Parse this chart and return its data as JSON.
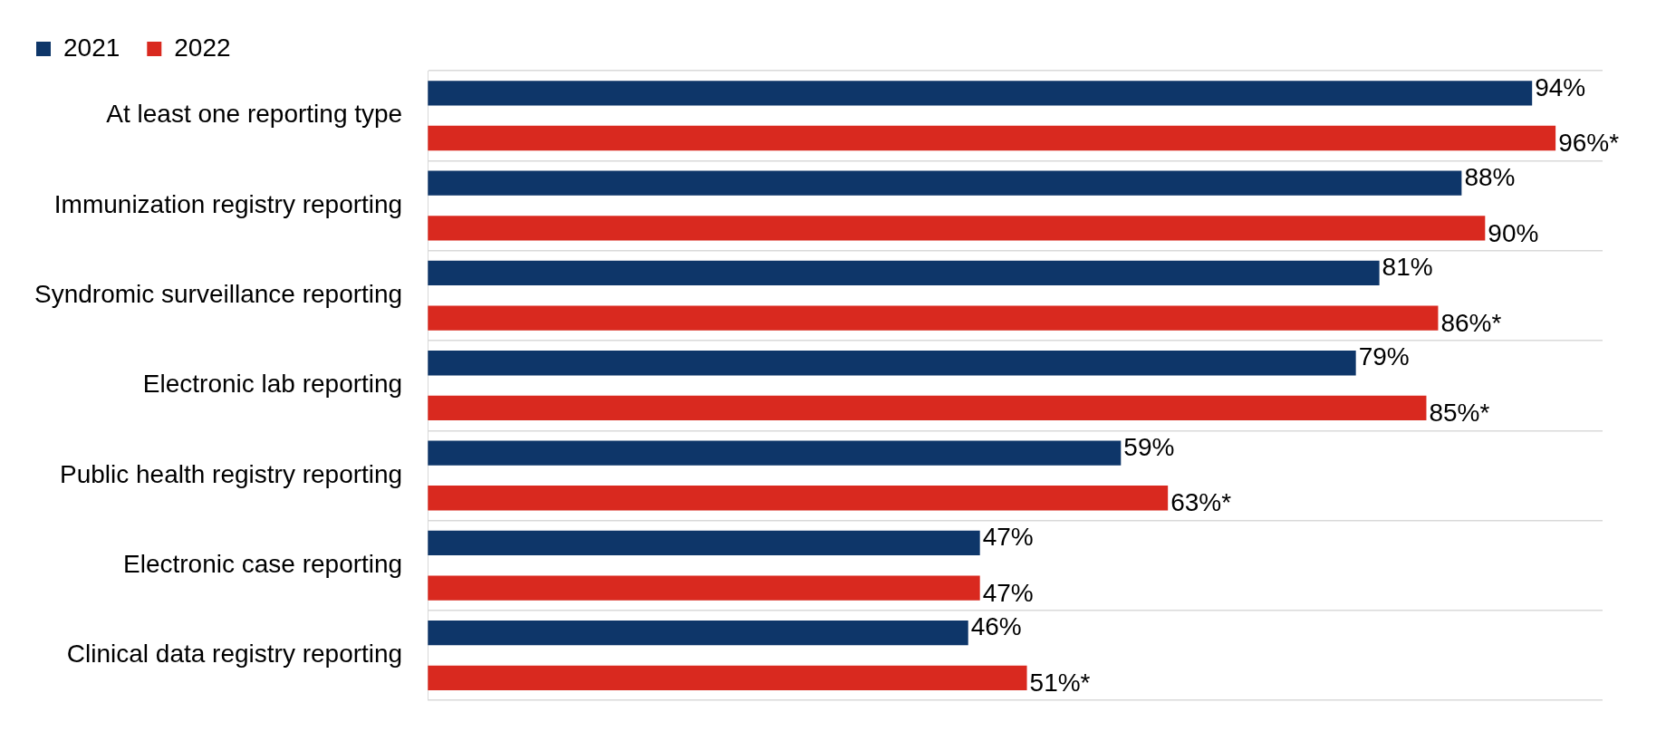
{
  "chart_data": {
    "type": "bar",
    "orientation": "horizontal",
    "categories": [
      "At least one reporting type",
      "Immunization registry reporting",
      "Syndromic surveillance reporting",
      "Electronic lab reporting",
      "Public health registry reporting",
      "Electronic case reporting",
      "Clinical data registry reporting"
    ],
    "series": [
      {
        "name": "2021",
        "color": "#0e3669",
        "values": [
          94,
          88,
          81,
          79,
          59,
          47,
          46
        ],
        "value_labels": [
          "94%",
          "88%",
          "81%",
          "79%",
          "59%",
          "47%",
          "46%"
        ]
      },
      {
        "name": "2022",
        "color": "#d9291f",
        "values": [
          96,
          90,
          86,
          85,
          63,
          47,
          51
        ],
        "value_labels": [
          "96%*",
          "90%",
          "86%*",
          "85%*",
          "63%*",
          "47%",
          "51%*"
        ]
      }
    ],
    "xlim": [
      0,
      100
    ],
    "tick_labels": "y",
    "grid": "y",
    "legend": "top left"
  }
}
